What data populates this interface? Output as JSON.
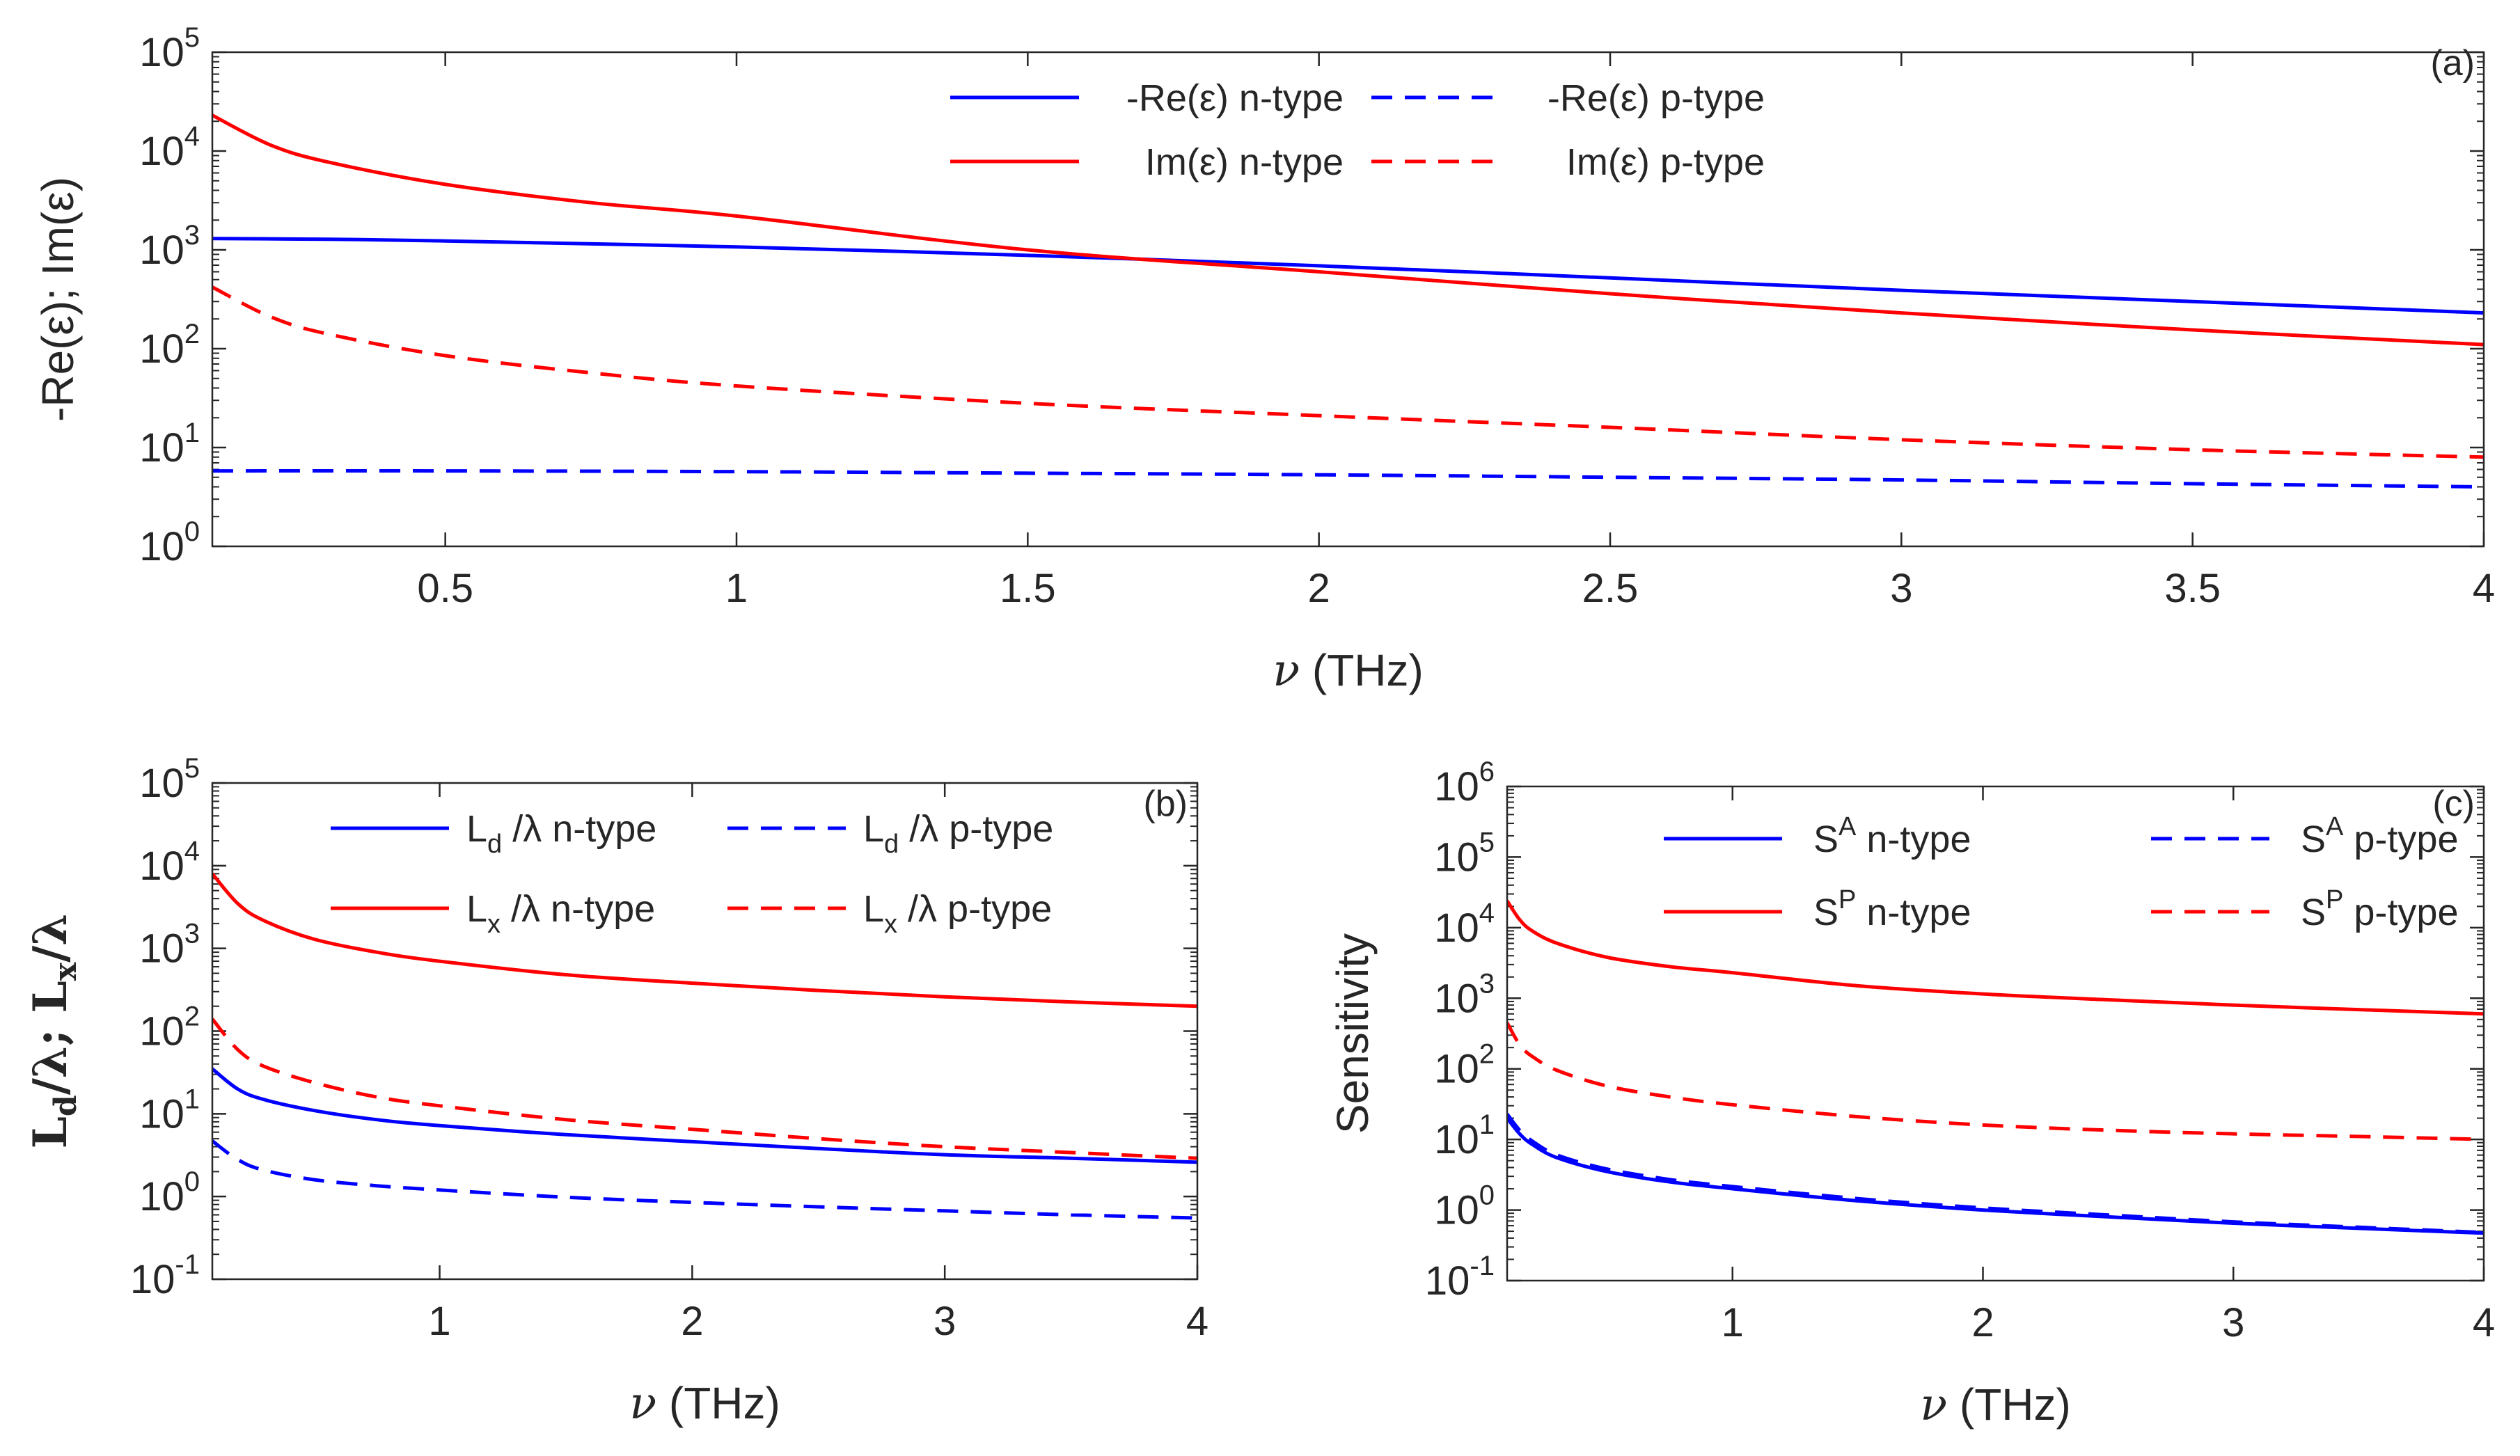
{
  "chart_data": [
    {
      "panel": "a",
      "type": "line",
      "tag": "(a)",
      "ylabel": "-Re(ε); Im(ε)",
      "xlabel_symbol": "ν",
      "xlabel_unit": "(THz)",
      "yscale": "log",
      "ylim": [
        1,
        100000
      ],
      "xlim": [
        0.1,
        4
      ],
      "xticks": [
        0.5,
        1,
        1.5,
        2,
        2.5,
        3,
        3.5,
        4
      ],
      "xtick_labels": [
        "0.5",
        "1",
        "1.5",
        "2",
        "2.5",
        "3",
        "3.5",
        "4"
      ],
      "yticks": [
        {
          "value": 1,
          "base": "10",
          "exp": "0"
        },
        {
          "value": 10,
          "base": "10",
          "exp": "1"
        },
        {
          "value": 100,
          "base": "10",
          "exp": "2"
        },
        {
          "value": 1000,
          "base": "10",
          "exp": "3"
        },
        {
          "value": 10000,
          "base": "10",
          "exp": "4"
        },
        {
          "value": 100000,
          "base": "10",
          "exp": "5"
        }
      ],
      "series": [
        {
          "name": "-Re(ε) n-type",
          "color": "#0000ff",
          "dash": false,
          "x": [
            0.1,
            0.3,
            0.5,
            1,
            1.5,
            2,
            2.5,
            3,
            3.5,
            4
          ],
          "y": [
            1300,
            1280,
            1230,
            1070,
            880,
            690,
            520,
            390,
            300,
            230
          ]
        },
        {
          "name": "-Re(ε) p-type",
          "color": "#0000ff",
          "dash": true,
          "x": [
            0.1,
            0.5,
            1,
            1.5,
            2,
            2.5,
            3,
            3.5,
            4
          ],
          "y": [
            5.8,
            5.8,
            5.7,
            5.5,
            5.3,
            5.0,
            4.7,
            4.3,
            4.0
          ]
        },
        {
          "name": "Im(ε) n-type",
          "color": "#ff0000",
          "dash": false,
          "x": [
            0.1,
            0.2,
            0.3,
            0.5,
            0.75,
            1,
            1.5,
            2,
            2.5,
            3,
            3.5,
            4
          ],
          "y": [
            23000,
            11500,
            7700,
            4600,
            3000,
            2200,
            1000,
            600,
            360,
            230,
            155,
            110
          ]
        },
        {
          "name": "Im(ε) p-type",
          "color": "#ff0000",
          "dash": true,
          "x": [
            0.1,
            0.2,
            0.3,
            0.5,
            0.75,
            1,
            1.5,
            2,
            2.5,
            3,
            3.5,
            4
          ],
          "y": [
            420,
            210,
            140,
            85,
            57,
            42,
            28,
            21,
            16,
            12,
            9.5,
            8
          ]
        }
      ],
      "legend": [
        {
          "label": "-Re(ε) n-type",
          "series": 0
        },
        {
          "label": "-Re(ε) p-type",
          "series": 1
        },
        {
          "label": "Im(ε) n-type",
          "series": 2
        },
        {
          "label": "Im(ε) p-type",
          "series": 3
        }
      ]
    },
    {
      "panel": "b",
      "type": "line",
      "tag": "(b)",
      "ylabel": "Ld/λ; Lx/λ",
      "ylabel_parts": {
        "a": "L",
        "a_sub": "d",
        "b": "/λ; ",
        "c": "L",
        "c_sub": "x",
        "d": "/λ"
      },
      "xlabel_symbol": "ν",
      "xlabel_unit": "(THz)",
      "yscale": "log",
      "ylim": [
        0.1,
        100000
      ],
      "xlim": [
        0.1,
        4
      ],
      "xticks": [
        1,
        2,
        3,
        4
      ],
      "xtick_labels": [
        "1",
        "2",
        "3",
        "4"
      ],
      "yticks": [
        {
          "value": 0.1,
          "base": "10",
          "exp": "-1"
        },
        {
          "value": 1,
          "base": "10",
          "exp": "0"
        },
        {
          "value": 10,
          "base": "10",
          "exp": "1"
        },
        {
          "value": 100,
          "base": "10",
          "exp": "2"
        },
        {
          "value": 1000,
          "base": "10",
          "exp": "3"
        },
        {
          "value": 10000,
          "base": "10",
          "exp": "4"
        },
        {
          "value": 100000,
          "base": "10",
          "exp": "5"
        }
      ],
      "series": [
        {
          "name": "Ld/λ n-type",
          "color": "#0000ff",
          "dash": false,
          "x": [
            0.1,
            0.2,
            0.3,
            0.5,
            0.75,
            1,
            1.5,
            2,
            2.5,
            3,
            3.5,
            4
          ],
          "y": [
            35,
            20,
            15,
            11,
            8.5,
            7.2,
            5.6,
            4.6,
            3.8,
            3.2,
            2.9,
            2.6
          ]
        },
        {
          "name": "Ld/λ p-type",
          "color": "#0000ff",
          "dash": true,
          "x": [
            0.1,
            0.2,
            0.3,
            0.5,
            0.75,
            1,
            1.5,
            2,
            2.5,
            3,
            3.5,
            4
          ],
          "y": [
            4.7,
            2.8,
            2.1,
            1.6,
            1.35,
            1.2,
            0.98,
            0.85,
            0.75,
            0.67,
            0.6,
            0.55
          ]
        },
        {
          "name": "Lx/λ n-type",
          "color": "#ff0000",
          "dash": false,
          "x": [
            0.1,
            0.2,
            0.3,
            0.5,
            0.75,
            1,
            1.5,
            2,
            2.5,
            3,
            3.5,
            4
          ],
          "y": [
            8000,
            3500,
            2200,
            1300,
            900,
            700,
            480,
            380,
            310,
            260,
            225,
            200
          ]
        },
        {
          "name": "Lx/λ p-type",
          "color": "#ff0000",
          "dash": true,
          "x": [
            0.1,
            0.2,
            0.3,
            0.5,
            0.75,
            1,
            1.5,
            2,
            2.5,
            3,
            3.5,
            4
          ],
          "y": [
            140,
            60,
            38,
            24,
            16,
            12.5,
            8.5,
            6.5,
            5.0,
            4.0,
            3.4,
            2.9
          ]
        }
      ],
      "legend": [
        {
          "label": "Ld/λ n-type",
          "main": "L",
          "sub": "d",
          "rest": "/λ n-type",
          "series": 0
        },
        {
          "label": "Ld/λ p-type",
          "main": "L",
          "sub": "d",
          "rest": "/λ p-type",
          "series": 1
        },
        {
          "label": "Lx/λ n-type",
          "main": "L",
          "sub": "x",
          "rest": "/λ n-type",
          "series": 2
        },
        {
          "label": "Lx/λ p-type",
          "main": "L",
          "sub": "x",
          "rest": "/λ p-type",
          "series": 3
        }
      ]
    },
    {
      "panel": "c",
      "type": "line",
      "tag": "(c)",
      "ylabel": "Sensitivity",
      "xlabel_symbol": "ν",
      "xlabel_unit": "(THz)",
      "yscale": "log",
      "ylim": [
        0.1,
        1000000
      ],
      "xlim": [
        0.1,
        4
      ],
      "xticks": [
        1,
        2,
        3,
        4
      ],
      "xtick_labels": [
        "1",
        "2",
        "3",
        "4"
      ],
      "yticks": [
        {
          "value": 0.1,
          "base": "10",
          "exp": "-1"
        },
        {
          "value": 1,
          "base": "10",
          "exp": "0"
        },
        {
          "value": 10,
          "base": "10",
          "exp": "1"
        },
        {
          "value": 100,
          "base": "10",
          "exp": "2"
        },
        {
          "value": 1000,
          "base": "10",
          "exp": "3"
        },
        {
          "value": 10000,
          "base": "10",
          "exp": "4"
        },
        {
          "value": 100000,
          "base": "10",
          "exp": "5"
        },
        {
          "value": 1000000,
          "base": "10",
          "exp": "6"
        }
      ],
      "series": [
        {
          "name": "SA n-type",
          "color": "#0000ff",
          "dash": false,
          "x": [
            0.1,
            0.15,
            0.2,
            0.3,
            0.5,
            0.75,
            1,
            1.5,
            2,
            2.5,
            3,
            3.5,
            4
          ],
          "y": [
            20,
            12,
            8.5,
            5.5,
            3.5,
            2.5,
            2.0,
            1.35,
            1.0,
            0.8,
            0.65,
            0.55,
            0.47
          ]
        },
        {
          "name": "SA p-type",
          "color": "#0000ff",
          "dash": true,
          "x": [
            0.1,
            0.15,
            0.2,
            0.3,
            0.5,
            0.75,
            1,
            1.5,
            2,
            2.5,
            3,
            3.5,
            4
          ],
          "y": [
            23,
            13.5,
            9.5,
            6,
            3.8,
            2.7,
            2.15,
            1.45,
            1.07,
            0.85,
            0.68,
            0.57,
            0.48
          ]
        },
        {
          "name": "SP n-type",
          "color": "#ff0000",
          "dash": false,
          "x": [
            0.1,
            0.15,
            0.2,
            0.3,
            0.5,
            0.75,
            1,
            1.5,
            2,
            2.5,
            3,
            3.5,
            4
          ],
          "y": [
            24000,
            13000,
            9000,
            6000,
            3800,
            2800,
            2300,
            1500,
            1150,
            950,
            800,
            690,
            600
          ]
        },
        {
          "name": "SP p-type",
          "color": "#ff0000",
          "dash": true,
          "x": [
            0.1,
            0.15,
            0.2,
            0.3,
            0.5,
            0.75,
            1,
            1.5,
            2,
            2.5,
            3,
            3.5,
            4
          ],
          "y": [
            450,
            220,
            150,
            95,
            57,
            40,
            31,
            21,
            16,
            13.5,
            12,
            11,
            10
          ]
        }
      ],
      "legend": [
        {
          "label": "SA n-type",
          "main": "S",
          "sup": "A",
          "rest": " n-type",
          "series": 0
        },
        {
          "label": "SA p-type",
          "main": "S",
          "sup": "A",
          "rest": " p-type",
          "series": 1
        },
        {
          "label": "SP n-type",
          "main": "S",
          "sup": "P",
          "rest": " n-type",
          "series": 2
        },
        {
          "label": "SP p-type",
          "main": "S",
          "sup": "P",
          "rest": " p-type",
          "series": 3
        }
      ]
    }
  ]
}
